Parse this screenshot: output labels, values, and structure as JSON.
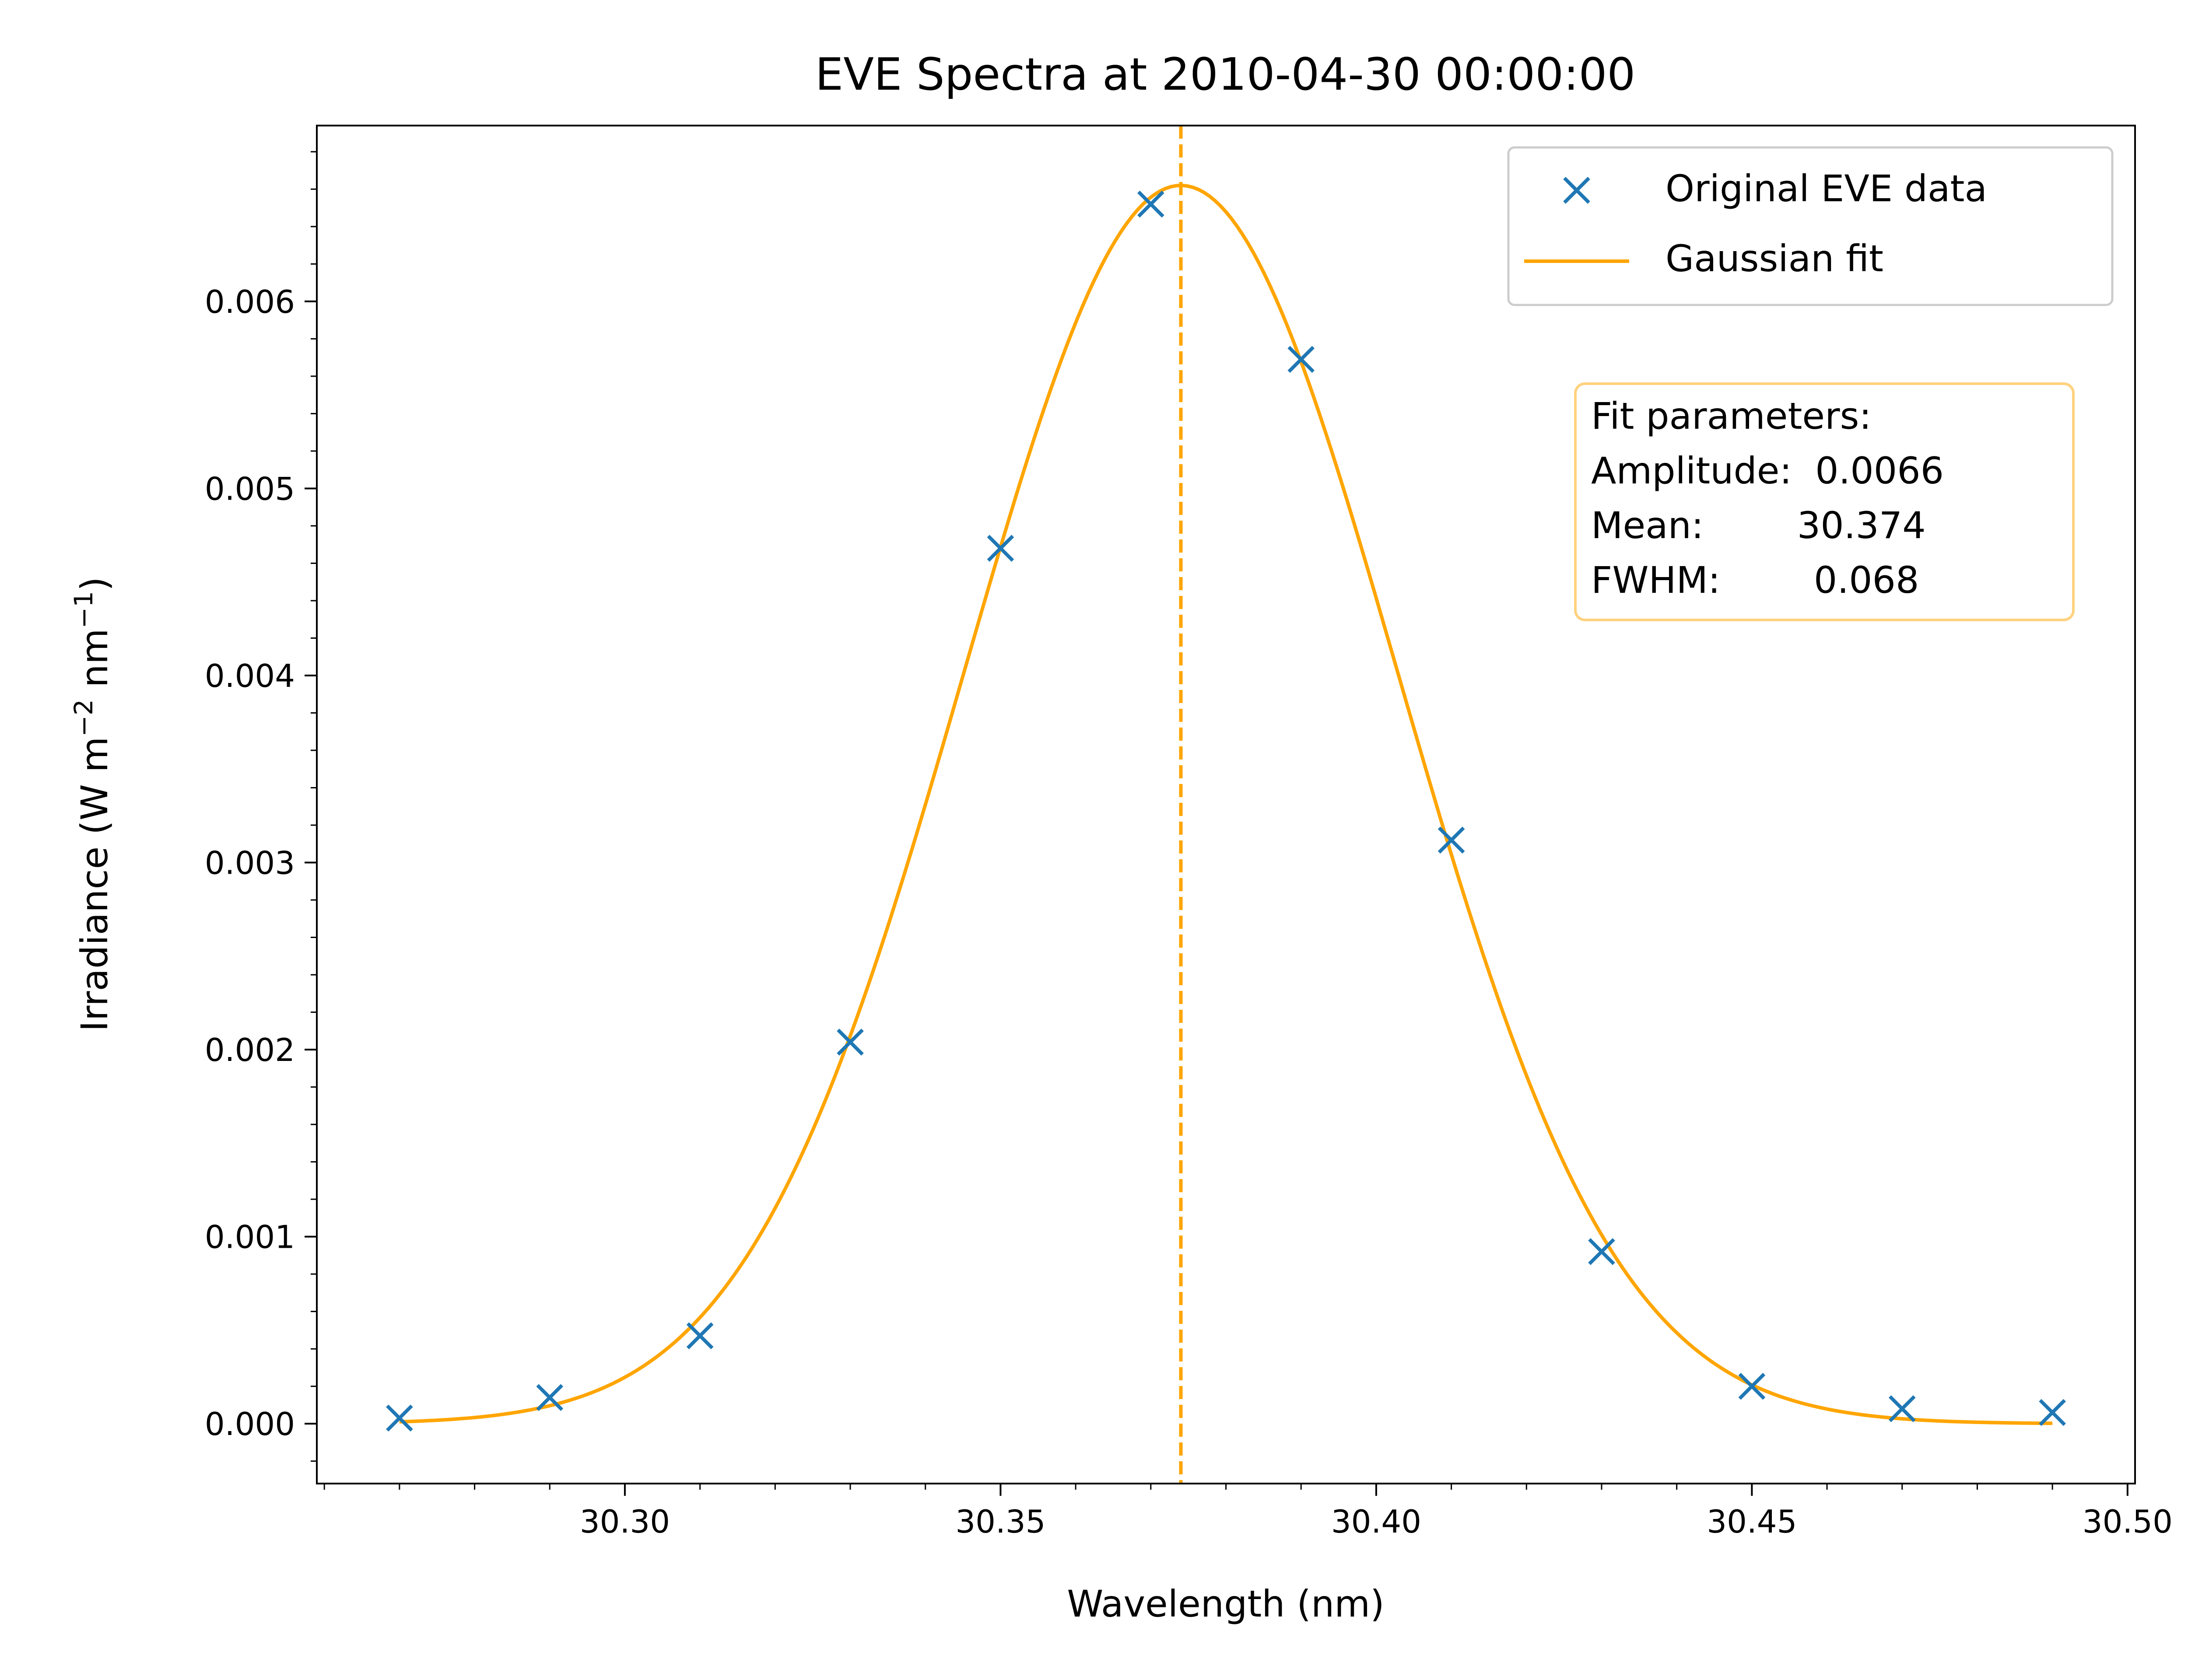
{
  "chart_data": {
    "type": "scatter",
    "title": "EVE Spectra at 2010-04-30 00:00:00",
    "xlabel": "Wavelength (nm)",
    "ylabel": "Irradiance (W m",
    "ylabel_sup1": "−2",
    "ylabel_mid": " nm",
    "ylabel_sup2": "−1",
    "ylabel_end": ")",
    "xlim": [
      30.259,
      30.501
    ],
    "ylim": [
      -0.00032,
      0.00694
    ],
    "x_ticks": [
      30.3,
      30.35,
      30.4,
      30.45,
      30.5
    ],
    "x_tick_labels": [
      "30.30",
      "30.35",
      "30.40",
      "30.45",
      "30.50"
    ],
    "y_ticks": [
      0.0,
      0.001,
      0.002,
      0.003,
      0.004,
      0.005,
      0.006
    ],
    "y_tick_labels": [
      "0.000",
      "0.001",
      "0.002",
      "0.003",
      "0.004",
      "0.005",
      "0.006"
    ],
    "series": [
      {
        "name": "Original EVE data",
        "kind": "scatter",
        "marker": "x",
        "color": "#1f77b4",
        "x": [
          30.27,
          30.29,
          30.31,
          30.33,
          30.35,
          30.37,
          30.39,
          30.41,
          30.43,
          30.45,
          30.47,
          30.49
        ],
        "y": [
          3e-05,
          0.00014,
          0.00047,
          0.00204,
          0.00468,
          0.00652,
          0.00569,
          0.00312,
          0.00092,
          0.0002,
          8e-05,
          6e-05
        ]
      },
      {
        "name": "Gaussian fit",
        "kind": "line",
        "color": "#ffa500",
        "model": "gaussian",
        "amplitude": 0.00662,
        "mean": 30.374,
        "fwhm": 0.068,
        "x_range": [
          30.27,
          30.49
        ]
      }
    ],
    "vline": {
      "x": 30.374,
      "style": "dashed",
      "color": "#ffa500"
    },
    "legend_position": "upper right",
    "param_box": {
      "lines": [
        "Fit parameters:",
        "Amplitude:  0.0066",
        "Mean:        30.374",
        "FWHM:        0.068"
      ],
      "border_color": "#ffa500"
    },
    "grid": false
  }
}
